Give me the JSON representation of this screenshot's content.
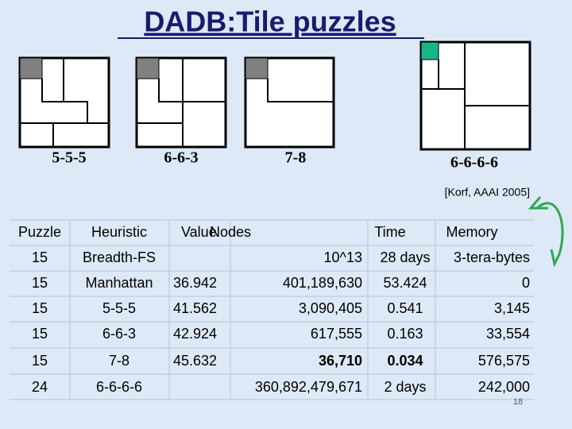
{
  "header": {
    "title": "DADB:Tile puzzles"
  },
  "puzzles": [
    {
      "label": "5-5-5"
    },
    {
      "label": "6-6-3"
    },
    {
      "label": "7-8"
    },
    {
      "label": "6-6-6-6"
    }
  ],
  "citation": "[Korf, AAAI 2005]",
  "table": {
    "columns": {
      "puzzle": "Puzzle",
      "heuristic": "Heuristic",
      "value": "Value",
      "nodes": "Nodes",
      "time": "Time",
      "memory": "Memory"
    },
    "rows": [
      {
        "cells": {
          "puzzle": "15",
          "heuristic": "Breadth-FS",
          "nodes": "10^13",
          "time": "28 days",
          "memory": "3-tera-bytes"
        }
      },
      {
        "cells": {
          "puzzle": "15",
          "heuristic": "Manhattan",
          "value": "36.942",
          "nodes": "401,189,630",
          "time": "53.424",
          "memory": "0"
        }
      },
      {
        "cells": {
          "puzzle": "15",
          "heuristic": "5-5-5",
          "value": "41.562",
          "nodes": "3,090,405",
          "time": "0.541",
          "memory": "3,145"
        }
      },
      {
        "cells": {
          "puzzle": "15",
          "heuristic": "6-6-3",
          "value": "42.924",
          "nodes": "617,555",
          "time": "0.163",
          "memory": "33,554"
        }
      },
      {
        "cells": {
          "puzzle": "15",
          "heuristic": "7-8",
          "value": "45.632",
          "nodes": "36,710",
          "time": "0.034",
          "memory": "576,575"
        },
        "bold": [
          "nodes",
          "time"
        ]
      },
      {
        "cells": {
          "puzzle": "24",
          "heuristic": "6-6-6-6",
          "nodes": "360,892,479,671",
          "time": "2 days",
          "memory": "242,000"
        }
      }
    ]
  },
  "page_number": "18"
}
